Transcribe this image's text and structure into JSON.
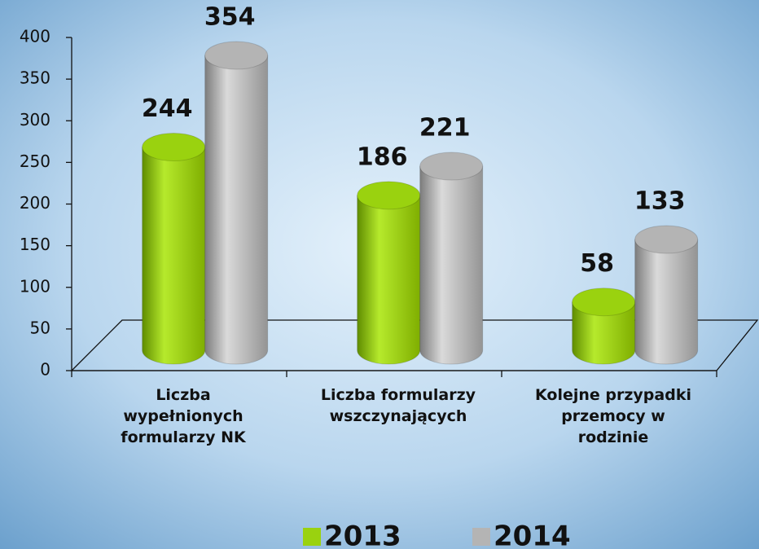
{
  "chart_data": {
    "type": "bar3d",
    "categories": [
      "Liczba wypełnionych formularzy NK",
      "Liczba formularzy wszczynających",
      "Kolejne przypadki przemocy w rodzinie"
    ],
    "series": [
      {
        "name": "2013",
        "color": "#9ad20f",
        "values": [
          244,
          186,
          58
        ]
      },
      {
        "name": "2014",
        "color": "#b4b4b4",
        "values": [
          354,
          221,
          133
        ]
      }
    ],
    "ylim": [
      0,
      400
    ],
    "yticks": [
      0,
      50,
      100,
      150,
      200,
      250,
      300,
      350,
      400
    ],
    "legend": "bottom"
  }
}
